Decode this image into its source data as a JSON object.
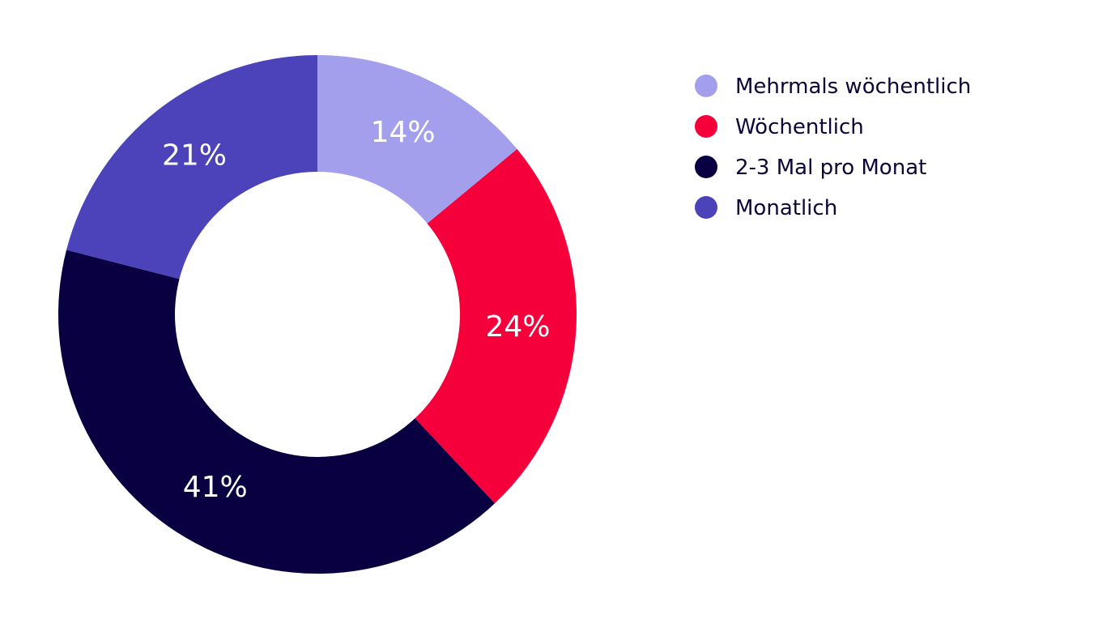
{
  "chart_data": {
    "type": "pie",
    "title": "",
    "donut": true,
    "legend_position": "top-right",
    "slices": [
      {
        "label": "Mehrmals wöchentlich",
        "value": 14,
        "display": "14%",
        "color": "#a39fec"
      },
      {
        "label": "Wöchentlich",
        "value": 24,
        "display": "24%",
        "color": "#f6003c"
      },
      {
        "label": "2-3 Mal pro Monat",
        "value": 41,
        "display": "41%",
        "color": "#080040"
      },
      {
        "label": "Monatlich",
        "value": 21,
        "display": "21%",
        "color": "#4c42b9"
      }
    ]
  }
}
